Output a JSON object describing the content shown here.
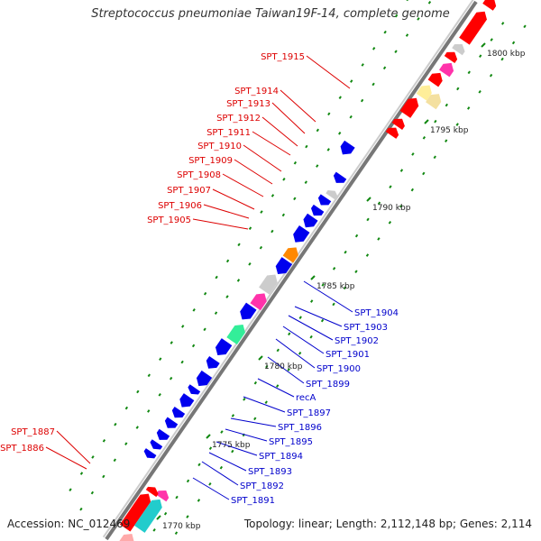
{
  "title": "Streptococcus pneumoniae Taiwan19F-14, complete genome",
  "accession": "Accession: NC_012469",
  "topology": "Topology: linear; Length: 2,112,148 bp; Genes: 2,114",
  "colors": {
    "red_label": "#dd0000",
    "blue_label": "#0000cc",
    "red_gene": "#ff0000",
    "blue_gene": "#0000ee",
    "green_tick": "#118811",
    "axis": "#999999"
  },
  "ruler": [
    {
      "label": "1800 kbp"
    },
    {
      "label": "1795 kbp"
    },
    {
      "label": "1790 kbp"
    },
    {
      "label": "1785 kbp"
    },
    {
      "label": "1780 kbp"
    },
    {
      "label": "1775 kbp"
    },
    {
      "label": "1770 kbp"
    }
  ],
  "red_labels": [
    {
      "text": "SPT_1915"
    },
    {
      "text": "SPT_1914"
    },
    {
      "text": "SPT_1913"
    },
    {
      "text": "SPT_1912"
    },
    {
      "text": "SPT_1911"
    },
    {
      "text": "SPT_1910"
    },
    {
      "text": "SPT_1909"
    },
    {
      "text": "SPT_1908"
    },
    {
      "text": "SPT_1907"
    },
    {
      "text": "SPT_1906"
    },
    {
      "text": "SPT_1905"
    },
    {
      "text": "SPT_1887"
    },
    {
      "text": "SPT_1886"
    }
  ],
  "blue_labels": [
    {
      "text": "SPT_1904"
    },
    {
      "text": "SPT_1903"
    },
    {
      "text": "SPT_1902"
    },
    {
      "text": "SPT_1901"
    },
    {
      "text": "SPT_1900"
    },
    {
      "text": "SPT_1899"
    },
    {
      "text": "recA"
    },
    {
      "text": "SPT_1897"
    },
    {
      "text": "SPT_1896"
    },
    {
      "text": "SPT_1895"
    },
    {
      "text": "SPT_1894"
    },
    {
      "text": "SPT_1893"
    },
    {
      "text": "SPT_1892"
    },
    {
      "text": "SPT_1891"
    }
  ]
}
